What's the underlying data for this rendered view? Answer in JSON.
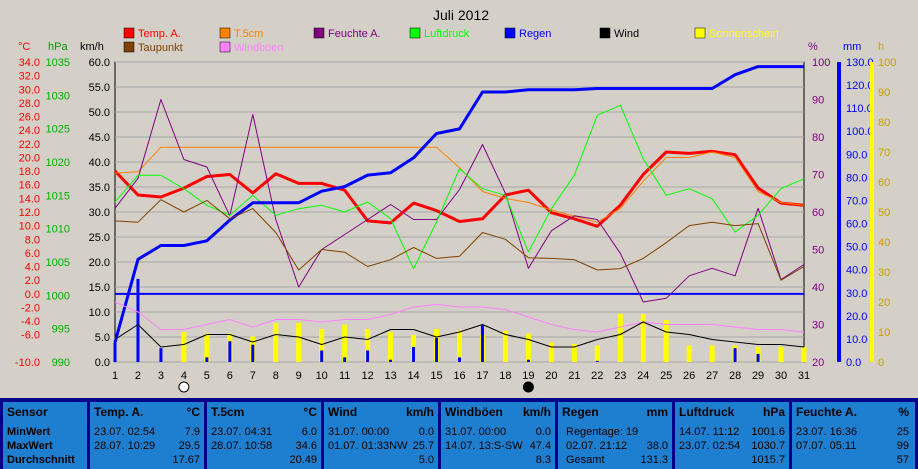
{
  "chart_data": {
    "type": "line",
    "title": "Juli 2012",
    "x": [
      1,
      2,
      3,
      4,
      5,
      6,
      7,
      8,
      9,
      10,
      11,
      12,
      13,
      14,
      15,
      16,
      17,
      18,
      19,
      20,
      21,
      22,
      23,
      24,
      25,
      26,
      27,
      28,
      29,
      30,
      31
    ],
    "axes": {
      "temp_c": {
        "unit": "°C",
        "ticks": [
          "34.0",
          "32.0",
          "30.0",
          "28.0",
          "26.0",
          "24.0",
          "22.0",
          "20.0",
          "18.0",
          "16.0",
          "14.0",
          "12.0",
          "10.0",
          "8.0",
          "6.0",
          "4.0",
          "2.0",
          "0.0",
          "-2.0",
          "-4.0",
          "-6.0",
          "-10.0"
        ],
        "ylim": [
          -10,
          34
        ]
      },
      "pressure_hpa": {
        "unit": "hPa",
        "ticks": [
          "1035",
          "1030",
          "1025",
          "1020",
          "1015",
          "1010",
          "1005",
          "1000",
          "995",
          "990"
        ],
        "ylim": [
          990,
          1035
        ]
      },
      "speed_kmh": {
        "unit": "km/h",
        "ticks": [
          "60.0",
          "55.0",
          "50.0",
          "45.0",
          "40.0",
          "35.0",
          "30.0",
          "25.0",
          "20.0",
          "15.0",
          "10.0",
          "5.0",
          "0.0"
        ],
        "ylim": [
          0,
          60
        ]
      },
      "humidity_pct": {
        "unit": "%",
        "ticks": [
          "100",
          "90",
          "80",
          "70",
          "60",
          "50",
          "40",
          "30",
          "20"
        ],
        "ylim": [
          20,
          100
        ]
      },
      "rain_mm": {
        "unit": "mm",
        "ticks": [
          "130.0",
          "120.0",
          "110.0",
          "100.0",
          "90.0",
          "80.0",
          "70.0",
          "60.0",
          "50.0",
          "40.0",
          "30.0",
          "20.0",
          "10.0",
          "0.0"
        ],
        "ylim": [
          0,
          130
        ]
      },
      "sun_h": {
        "unit": "h",
        "ticks": [
          "100",
          "90",
          "80",
          "70",
          "60",
          "50",
          "40",
          "30",
          "20",
          "10",
          "0"
        ],
        "ylim": [
          0,
          100
        ]
      }
    },
    "legend": [
      {
        "name": "Temp. A.",
        "color": "#ff0000"
      },
      {
        "name": "T.5cm",
        "color": "#ff8000"
      },
      {
        "name": "Feuchte A.",
        "color": "#800080"
      },
      {
        "name": "Luftdruck",
        "color": "#00ff00"
      },
      {
        "name": "Regen",
        "color": "#0000ff"
      },
      {
        "name": "Wind",
        "color": "#000000"
      },
      {
        "name": "Sonnenschein",
        "color": "#ffff00"
      },
      {
        "name": "Taupunkt",
        "color": "#804000"
      },
      {
        "name": "Windböen",
        "color": "#ff80ff"
      }
    ],
    "series": [
      {
        "name": "Temp. A.",
        "axis": "temp_c",
        "color": "#ff0000",
        "width": 3,
        "values": [
          18.0,
          14.5,
          14.2,
          15.5,
          17.2,
          17.5,
          14.8,
          17.6,
          16.2,
          16.2,
          15.2,
          10.7,
          10.4,
          13.3,
          12.2,
          10.6,
          11.0,
          14.5,
          15.2,
          11.9,
          11.0,
          9.9,
          13.0,
          17.5,
          20.8,
          20.6,
          20.9,
          20.4,
          15.5,
          13.3,
          13.0
        ]
      },
      {
        "name": "T.5cm",
        "axis": "temp_c",
        "color": "#ff8000",
        "width": 1,
        "values": [
          17.7,
          17.9,
          21.5,
          21.5,
          21.5,
          21.5,
          21.5,
          21.5,
          21.5,
          21.5,
          21.5,
          21.5,
          21.5,
          21.5,
          21.5,
          18.5,
          15.0,
          14.0,
          13.4,
          12.3,
          11.4,
          10.5,
          12.5,
          16.5,
          20.0,
          20.0,
          20.8,
          20.0,
          15.0,
          13.4,
          13.0
        ]
      },
      {
        "name": "Feuchte A.",
        "axis": "humidity_pct",
        "color": "#800080",
        "width": 1,
        "values": [
          61,
          69,
          90,
          74,
          72,
          59,
          86,
          58,
          40,
          50,
          54,
          58,
          62,
          58,
          58,
          66,
          78,
          65,
          45,
          55,
          59,
          58,
          49,
          36,
          37,
          43,
          45,
          43,
          61,
          42,
          46
        ]
      },
      {
        "name": "Luftdruck",
        "axis": "pressure_hpa",
        "color": "#00ff00",
        "width": 1,
        "values": [
          1014.0,
          1018.0,
          1018.0,
          1016.0,
          1013.5,
          1012.0,
          1015.0,
          1012.0,
          1013.0,
          1013.5,
          1012.5,
          1014.0,
          1011.5,
          1004.0,
          1011.0,
          1019.0,
          1016.0,
          1015.0,
          1006.5,
          1013.0,
          1018.0,
          1027.0,
          1028.5,
          1020.5,
          1015.0,
          1016.0,
          1014.5,
          1009.5,
          1012.0,
          1016.0,
          1017.5
        ]
      },
      {
        "name": "Regen",
        "axis": "rain_mm",
        "color": "#0000ff",
        "width": 3,
        "values": [
          8.5,
          44.5,
          50.5,
          50.5,
          52.5,
          61.5,
          69.0,
          69.0,
          69.0,
          74.0,
          76.0,
          81.0,
          82.0,
          88.5,
          99.0,
          101.0,
          117.0,
          117.0,
          118.0,
          118.0,
          118.0,
          118.5,
          118.5,
          118.5,
          118.5,
          118.5,
          118.5,
          124.5,
          128.0,
          128.0,
          128.0
        ]
      },
      {
        "name": "Taupunkt",
        "axis": "temp_c",
        "color": "#804000",
        "width": 1,
        "values": [
          10.7,
          10.5,
          13.8,
          12.0,
          13.7,
          11.0,
          12.5,
          9.0,
          3.5,
          6.5,
          6.1,
          4.0,
          5.0,
          6.8,
          5.2,
          5.5,
          9.0,
          8.0,
          5.3,
          5.2,
          5.0,
          3.5,
          3.7,
          5.2,
          7.5,
          10.0,
          10.5,
          10.0,
          10.3,
          2.0,
          4.0
        ]
      },
      {
        "name": "Windböen",
        "axis": "speed_kmh",
        "color": "#ff80ff",
        "width": 1,
        "values": [
          12.0,
          10.0,
          6.5,
          6.5,
          7.5,
          8.5,
          7.0,
          8.5,
          8.5,
          8.0,
          8.5,
          8.5,
          9.5,
          11.0,
          11.5,
          11.0,
          11.0,
          10.5,
          9.0,
          7.5,
          6.5,
          6.0,
          7.0,
          8.0,
          7.5,
          7.5,
          7.5,
          7.0,
          6.5,
          6.5,
          6.0
        ]
      },
      {
        "name": "Wind",
        "axis": "speed_kmh",
        "color": "#000000",
        "width": 1,
        "values": [
          4.5,
          7.5,
          3.0,
          3.5,
          5.5,
          5.5,
          4.0,
          5.5,
          5.0,
          3.5,
          5.0,
          4.5,
          6.5,
          6.5,
          5.0,
          6.0,
          7.5,
          5.5,
          4.5,
          3.0,
          3.0,
          4.5,
          5.5,
          8.0,
          6.0,
          5.5,
          4.5,
          4.0,
          3.5,
          3.5,
          3.0
        ]
      }
    ],
    "bars": [
      {
        "name": "Sonnenschein",
        "axis": "sun_h",
        "color": "#ffff00",
        "values": [
          0,
          0,
          0,
          10,
          9.5,
          9.5,
          8.5,
          13,
          13,
          11,
          12.5,
          11,
          10,
          9,
          11,
          10.5,
          9,
          10.5,
          9.5,
          6.5,
          6,
          5.5,
          16,
          16,
          14,
          5.5,
          5.5,
          5.5,
          5,
          5,
          5
        ]
      },
      {
        "name": "Regen",
        "axis": "rain_mm",
        "color": "#0000ff",
        "values": [
          8.5,
          36,
          6.0,
          0,
          2.0,
          9.0,
          7.5,
          0,
          0,
          5.0,
          2.0,
          5.0,
          1.0,
          6.5,
          10.5,
          2.0,
          16.0,
          0,
          1.0,
          0,
          0,
          0.5,
          0,
          0,
          0,
          0,
          0,
          6.0,
          3.5,
          0,
          0
        ]
      }
    ],
    "moon_phase_days": [
      {
        "day": 4,
        "phase": "full"
      },
      {
        "day": 19,
        "phase": "new"
      }
    ],
    "grid": true
  },
  "header": {
    "title": "Juli 2012",
    "unit_celsius": "°C",
    "unit_hpa": "hPa",
    "unit_kmh": "km/h",
    "unit_percent": "%",
    "unit_mm": "mm",
    "unit_h": "h"
  },
  "table": {
    "sensor": {
      "title": "Sensor",
      "min": "MinWert",
      "max": "MaxWert",
      "avg": "Durchschnitt"
    },
    "temp": {
      "title": "Temp. A.",
      "unit": "°C",
      "min_time": "23.07.  02:54",
      "min_val": "7.9",
      "max_time": "28.07.  10:29",
      "max_val": "29.5",
      "avg_val": "17.67"
    },
    "t5cm": {
      "title": "T.5cm",
      "unit": "°C",
      "min_time": "23.07.  04:31",
      "min_val": "6.0",
      "max_time": "28.07.  10:58",
      "max_val": "34.6",
      "avg_val": "20.49"
    },
    "wind": {
      "title": "Wind",
      "unit": "km/h",
      "min_time": "31.07.  00:00",
      "min_val": "0.0",
      "max_time": "01.07.  01:33NW",
      "max_val": "25.7",
      "avg_val": "5.0"
    },
    "gust": {
      "title": "Windböen",
      "unit": "km/h",
      "min_time": "31.07.  00:00",
      "min_val": "0.0",
      "max_time": "14.07.  13:S-SW",
      "max_val": "47.4",
      "avg_val": "8.3"
    },
    "rain": {
      "title": "Regen",
      "unit": "mm",
      "days_label": "Regentage: 19",
      "max_time": "02.07.  21:12",
      "max_val": "38.0",
      "total_label": "Gesamt",
      "total_val": "131.3"
    },
    "pressure": {
      "title": "Luftdruck",
      "unit": "hPa",
      "min_time": "14.07.  11:12",
      "min_val": "1001.6",
      "max_time": "23.07.  02:54",
      "max_val": "1030.7",
      "avg_val": "1015.7"
    },
    "humidity": {
      "title": "Feuchte A.",
      "unit": "%",
      "min_time": "23.07.  16:36",
      "min_val": "25",
      "max_time": "07.07.  05:11",
      "max_val": "99",
      "avg_val": "57"
    }
  }
}
